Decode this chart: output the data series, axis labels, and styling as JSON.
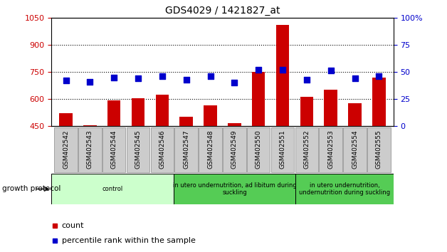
{
  "title": "GDS4029 / 1421827_at",
  "samples": [
    "GSM402542",
    "GSM402543",
    "GSM402544",
    "GSM402545",
    "GSM402546",
    "GSM402547",
    "GSM402548",
    "GSM402549",
    "GSM402550",
    "GSM402551",
    "GSM402552",
    "GSM402553",
    "GSM402554",
    "GSM402555"
  ],
  "counts": [
    520,
    455,
    590,
    605,
    625,
    500,
    565,
    465,
    750,
    1010,
    610,
    650,
    575,
    720
  ],
  "percentiles": [
    42,
    41,
    45,
    44,
    46,
    43,
    46,
    40,
    52,
    52,
    43,
    51,
    44,
    46
  ],
  "count_color": "#cc0000",
  "percentile_color": "#0000cc",
  "ylim_left": [
    450,
    1050
  ],
  "ylim_right": [
    0,
    100
  ],
  "yticks_left": [
    450,
    600,
    750,
    900,
    1050
  ],
  "yticks_right": [
    0,
    25,
    50,
    75,
    100
  ],
  "grid_values": [
    600,
    750,
    900
  ],
  "group_starts": [
    0,
    5,
    10
  ],
  "group_ends": [
    5,
    10,
    14
  ],
  "group_labels": [
    "control",
    "in utero undernutrition, ad libitum during\nsuckling",
    "in utero undernutrition,\nundernutrition during suckling"
  ],
  "group_colors_light": [
    "#ccffcc",
    "#55cc55",
    "#55cc55"
  ],
  "growth_protocol_label": "growth protocol",
  "legend_count": "count",
  "legend_percentile": "percentile rank within the sample",
  "bar_width": 0.55,
  "marker_size": 28,
  "bg_color": "#ffffff",
  "label_bg_color": "#cccccc"
}
